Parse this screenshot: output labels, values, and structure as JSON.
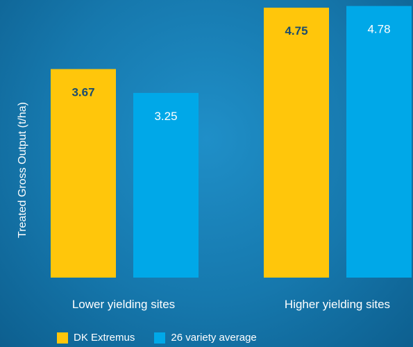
{
  "chart_data": {
    "type": "bar",
    "categories": [
      "Lower yielding sites",
      "Higher yielding sites"
    ],
    "series": [
      {
        "name": "DK Extremus",
        "values": [
          3.67,
          4.75
        ],
        "color": "#ffc60b",
        "label_color": "#1b4c6e"
      },
      {
        "name": "26 variety average",
        "values": [
          3.25,
          4.78
        ],
        "color": "#00a8e8",
        "label_color": "#ffffff"
      }
    ],
    "title": "",
    "xlabel": "",
    "ylabel": "Treated Gross Output (t/ha)",
    "data_labels": [
      "3.67",
      "4.75",
      "3.25",
      "4.78"
    ],
    "ylim": [
      0,
      4.8
    ],
    "grid": false,
    "legend": "bottom"
  }
}
